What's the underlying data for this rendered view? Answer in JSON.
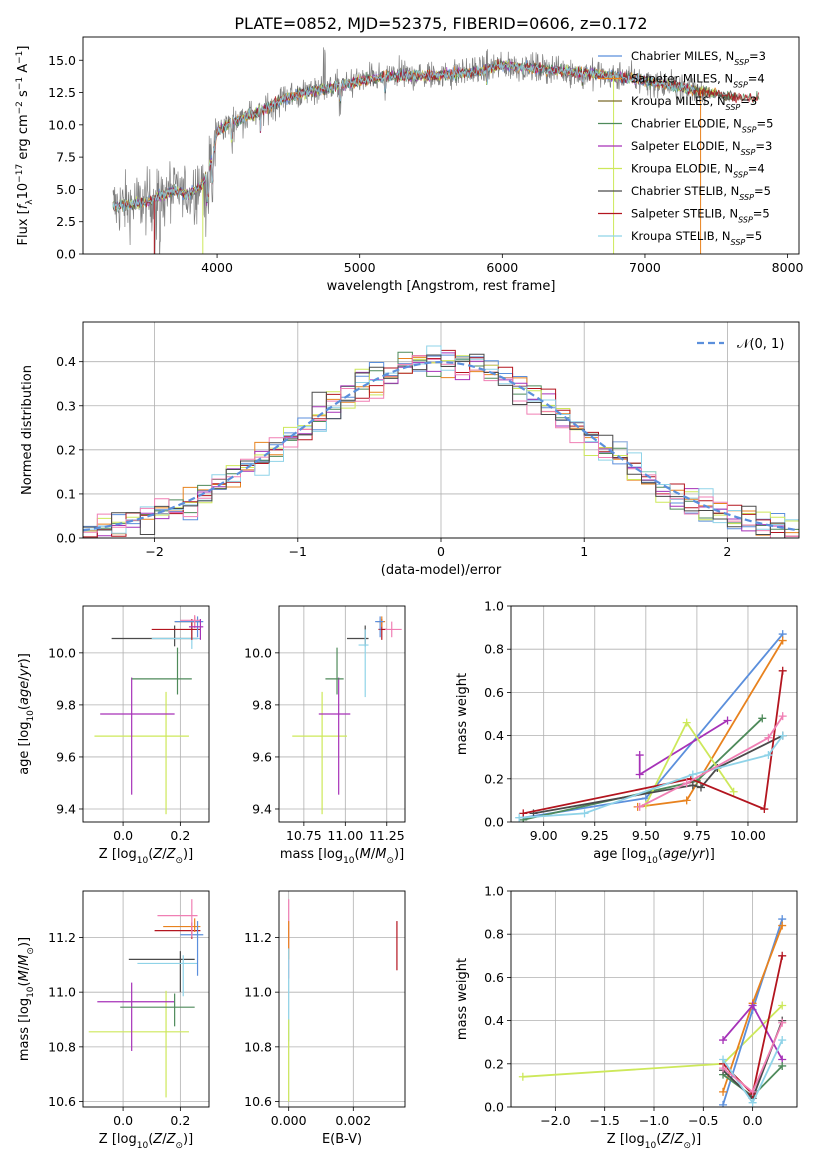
{
  "figure": {
    "title": "PLATE=0852, MJD=52375, FIBERID=0606, z=0.172"
  },
  "colors": {
    "chabrier_miles": "#5b8fdc",
    "salpeter_miles": "#e8821e",
    "kroupa_miles": "#7a6a2a",
    "chabrier_elodie": "#4e8a5a",
    "salpeter_elodie": "#a632b8",
    "kroupa_elodie": "#cde85a",
    "chabrier_stelib": "#4a4a4a",
    "salpeter_stelib": "#b3151f",
    "kroupa_stelib": "#8fd3e8",
    "data": "#7f7f7f",
    "normal": "#5b8fdc",
    "pink": "#f07fb4"
  },
  "chart_data": [
    {
      "id": "spectrum",
      "type": "line",
      "xlabel": "wavelength [Angstrom, rest frame]",
      "ylabel": "Flux [f_λ10^-17 erg cm^-2 s^-1 A^-1]",
      "xlim": [
        3060,
        8080
      ],
      "ylim": [
        0,
        16.8
      ],
      "xticks": [
        4000,
        5000,
        6000,
        7000,
        8000
      ],
      "yticks": [
        0.0,
        2.5,
        5.0,
        7.5,
        10.0,
        12.5,
        15.0
      ],
      "grid": false,
      "legend_position": "right",
      "anchors": {
        "x": [
          3270,
          3500,
          3600,
          3700,
          3800,
          3900,
          3970,
          4000,
          4100,
          4300,
          4500,
          4800,
          5000,
          5200,
          5500,
          5800,
          6000,
          6300,
          6600,
          6900,
          7200,
          7400,
          7600,
          7850
        ],
        "y": [
          3.7,
          4.0,
          4.5,
          4.9,
          4.6,
          5.4,
          7.5,
          9.5,
          10.2,
          11.0,
          12.2,
          12.9,
          13.4,
          13.8,
          13.8,
          14.1,
          14.6,
          14.3,
          14.0,
          13.6,
          13.0,
          12.6,
          12.2,
          12.0
        ]
      },
      "series": [
        {
          "name": "Chabrier MILES, N_SSP=3",
          "color_key": "chabrier_miles"
        },
        {
          "name": "Salpeter MILES, N_SSP=4",
          "color_key": "salpeter_miles"
        },
        {
          "name": "Kroupa MILES, N_SSP=3",
          "color_key": "kroupa_miles"
        },
        {
          "name": "Chabrier ELODIE, N_SSP=5",
          "color_key": "chabrier_elodie"
        },
        {
          "name": "Salpeter ELODIE, N_SSP=3",
          "color_key": "salpeter_elodie"
        },
        {
          "name": "Kroupa ELODIE, N_SSP=4",
          "color_key": "kroupa_elodie"
        },
        {
          "name": "Chabrier STELIB, N_SSP=5",
          "color_key": "chabrier_stelib"
        },
        {
          "name": "Salpeter STELIB, N_SSP=5",
          "color_key": "salpeter_stelib"
        },
        {
          "name": "Kroupa STELIB, N_SSP=5",
          "color_key": "kroupa_stelib"
        }
      ]
    },
    {
      "id": "residuals",
      "type": "line",
      "xlabel": "(data-model)/error",
      "ylabel": "Normed distribution",
      "xlim": [
        -2.5,
        2.5
      ],
      "ylim": [
        0,
        0.49
      ],
      "xticks": [
        -2,
        -1,
        0,
        1,
        2
      ],
      "yticks": [
        0.0,
        0.1,
        0.2,
        0.3,
        0.4
      ],
      "grid": true,
      "legend_position": "top-right",
      "legend_label": "𝒩(0, 1)",
      "bin_width": 0.1,
      "series_color_keys": [
        "chabrier_miles",
        "salpeter_miles",
        "chabrier_elodie",
        "salpeter_elodie",
        "kroupa_elodie",
        "salpeter_stelib",
        "kroupa_stelib",
        "pink",
        "chabrier_stelib"
      ]
    },
    {
      "id": "age_vs_Z",
      "type": "scatter",
      "xlabel": "Z [log10(Z/Z⊙)]",
      "ylabel": "age  [log10(age/yr)]",
      "xlim": [
        -0.14,
        0.3
      ],
      "ylim": [
        9.35,
        10.18
      ],
      "xticks": [
        0.0,
        0.2
      ],
      "yticks": [
        9.4,
        9.6,
        9.8,
        10.0
      ],
      "grid": true,
      "points": [
        {
          "x": 0.15,
          "y": 9.68,
          "xerr": [
            0.25,
            0.08
          ],
          "yerr": [
            0.3,
            0.17
          ],
          "color_key": "kroupa_elodie"
        },
        {
          "x": 0.03,
          "y": 9.765,
          "xerr": [
            0.11,
            0.15
          ],
          "yerr": [
            0.31,
            0.14
          ],
          "color_key": "salpeter_elodie"
        },
        {
          "x": 0.19,
          "y": 9.9,
          "xerr": [
            0.16,
            0.05
          ],
          "yerr": [
            0.06,
            0.12
          ],
          "color_key": "chabrier_elodie"
        },
        {
          "x": 0.18,
          "y": 10.055,
          "xerr": [
            0.22,
            0.08
          ],
          "yerr": [
            0.03,
            0.05
          ],
          "color_key": "chabrier_stelib"
        },
        {
          "x": 0.24,
          "y": 10.055,
          "xerr": [
            0.14,
            0.03
          ],
          "yerr": [
            0.04,
            0.06
          ],
          "color_key": "kroupa_stelib"
        },
        {
          "x": 0.24,
          "y": 10.09,
          "xerr": [
            0.14,
            0.03
          ],
          "yerr": [
            0.04,
            0.04
          ],
          "color_key": "salpeter_stelib"
        },
        {
          "x": 0.25,
          "y": 10.12,
          "xerr": [
            0.07,
            0.02
          ],
          "yerr": [
            0.02,
            0.02
          ],
          "color_key": "salpeter_miles"
        },
        {
          "x": 0.26,
          "y": 10.12,
          "xerr": [
            0.08,
            0.02
          ],
          "yerr": [
            0.06,
            0.02
          ],
          "color_key": "chabrier_miles"
        },
        {
          "x": 0.25,
          "y": 10.125,
          "xerr": [
            0.05,
            0.02
          ],
          "yerr": [
            0.03,
            0.02
          ],
          "color_key": "pink"
        },
        {
          "x": 0.27,
          "y": 10.1,
          "xerr": [
            0.04,
            0.01
          ],
          "yerr": [
            0.05,
            0.03
          ],
          "color_key": "salpeter_elodie"
        }
      ]
    },
    {
      "id": "age_vs_mass",
      "type": "scatter",
      "xlabel": "mass [log10(M/M⊙)]",
      "ylabel": "",
      "xlim": [
        10.6,
        11.36
      ],
      "ylim": [
        9.35,
        10.18
      ],
      "xticks": [
        10.75,
        11.0,
        11.25
      ],
      "yticks": [
        9.4,
        9.6,
        9.8,
        10.0
      ],
      "grid": true,
      "points": [
        {
          "x": 10.86,
          "y": 9.68,
          "xerr": [
            0.18,
            0.15
          ],
          "yerr": [
            0.3,
            0.17
          ],
          "color_key": "kroupa_elodie"
        },
        {
          "x": 10.96,
          "y": 9.765,
          "xerr": [
            0.12,
            0.07
          ],
          "yerr": [
            0.31,
            0.14
          ],
          "color_key": "salpeter_elodie"
        },
        {
          "x": 10.95,
          "y": 9.9,
          "xerr": [
            0.07,
            0.04
          ],
          "yerr": [
            0.06,
            0.12
          ],
          "color_key": "chabrier_elodie"
        },
        {
          "x": 11.12,
          "y": 10.055,
          "xerr": [
            0.11,
            0.02
          ],
          "yerr": [
            0.03,
            0.05
          ],
          "color_key": "chabrier_stelib"
        },
        {
          "x": 11.12,
          "y": 10.03,
          "xerr": [
            0.04,
            0.02
          ],
          "yerr": [
            0.2,
            0.06
          ],
          "color_key": "kroupa_stelib"
        },
        {
          "x": 11.22,
          "y": 10.09,
          "xerr": [
            0.02,
            0.03
          ],
          "yerr": [
            0.04,
            0.04
          ],
          "color_key": "salpeter_stelib"
        },
        {
          "x": 11.22,
          "y": 10.12,
          "xerr": [
            0.03,
            0.02
          ],
          "yerr": [
            0.02,
            0.02
          ],
          "color_key": "salpeter_miles"
        },
        {
          "x": 11.21,
          "y": 10.12,
          "xerr": [
            0.03,
            0.02
          ],
          "yerr": [
            0.06,
            0.02
          ],
          "color_key": "chabrier_miles"
        },
        {
          "x": 11.28,
          "y": 10.09,
          "xerr": [
            0.04,
            0.06
          ],
          "yerr": [
            0.03,
            0.03
          ],
          "color_key": "pink"
        }
      ]
    },
    {
      "id": "weight_vs_age",
      "type": "line",
      "xlabel": "age  [log10(age/yr)]",
      "ylabel": "mass weight",
      "xlim": [
        8.84,
        10.24
      ],
      "ylim": [
        0,
        1.0
      ],
      "xticks": [
        9.0,
        9.25,
        9.5,
        9.75,
        10.0
      ],
      "yticks": [
        0.0,
        0.2,
        0.4,
        0.6,
        0.8,
        1.0
      ],
      "grid": true,
      "series": [
        {
          "color_key": "chabrier_miles",
          "x": [
            8.9,
            9.5,
            10.17
          ],
          "y": [
            0.02,
            0.11,
            0.87
          ]
        },
        {
          "color_key": "salpeter_miles",
          "x": [
            9.46,
            9.7,
            10.17
          ],
          "y": [
            0.07,
            0.1,
            0.84
          ]
        },
        {
          "color_key": "chabrier_elodie",
          "x": [
            8.9,
            9.75,
            10.07
          ],
          "y": [
            0.01,
            0.19,
            0.48
          ]
        },
        {
          "color_key": "salpeter_elodie",
          "x": [
            9.47,
            9.47,
            9.9
          ],
          "y": [
            0.31,
            0.22,
            0.47
          ]
        },
        {
          "color_key": "kroupa_elodie",
          "x": [
            9.5,
            9.7,
            9.93
          ],
          "y": [
            0.08,
            0.46,
            0.14
          ]
        },
        {
          "color_key": "chabrier_stelib",
          "x": [
            8.95,
            9.73,
            9.77,
            9.85,
            10.17
          ],
          "y": [
            0.04,
            0.17,
            0.16,
            0.25,
            0.4
          ]
        },
        {
          "color_key": "salpeter_stelib",
          "x": [
            8.9,
            9.72,
            10.08,
            10.17
          ],
          "y": [
            0.04,
            0.2,
            0.06,
            0.7
          ]
        },
        {
          "color_key": "kroupa_stelib",
          "x": [
            8.88,
            9.2,
            9.73,
            10.1,
            10.17
          ],
          "y": [
            0.02,
            0.04,
            0.22,
            0.31,
            0.4
          ]
        },
        {
          "color_key": "pink",
          "x": [
            9.47,
            9.7,
            10.1,
            10.17
          ],
          "y": [
            0.07,
            0.18,
            0.39,
            0.49
          ]
        }
      ]
    },
    {
      "id": "mass_vs_Z",
      "type": "scatter",
      "xlabel": "Z [log10(Z/Z⊙)]",
      "ylabel": "mass [log10(M/M⊙)]",
      "xlim": [
        -0.14,
        0.3
      ],
      "ylim": [
        10.58,
        11.37
      ],
      "xticks": [
        0.0,
        0.2
      ],
      "yticks": [
        10.6,
        10.8,
        11.0,
        11.2
      ],
      "grid": true,
      "points": [
        {
          "x": 0.15,
          "y": 10.855,
          "xerr": [
            0.27,
            0.08
          ],
          "yerr": [
            0.24,
            0.15
          ],
          "color_key": "kroupa_elodie"
        },
        {
          "x": 0.03,
          "y": 10.965,
          "xerr": [
            0.12,
            0.15
          ],
          "yerr": [
            0.18,
            0.07
          ],
          "color_key": "salpeter_elodie"
        },
        {
          "x": 0.18,
          "y": 10.945,
          "xerr": [
            0.19,
            0.07
          ],
          "yerr": [
            0.07,
            0.05
          ],
          "color_key": "chabrier_elodie"
        },
        {
          "x": 0.2,
          "y": 11.12,
          "xerr": [
            0.18,
            0.05
          ],
          "yerr": [
            0.12,
            0.03
          ],
          "color_key": "chabrier_stelib"
        },
        {
          "x": 0.21,
          "y": 11.105,
          "xerr": [
            0.16,
            0.05
          ],
          "yerr": [
            0.12,
            0.03
          ],
          "color_key": "kroupa_stelib"
        },
        {
          "x": 0.24,
          "y": 11.225,
          "xerr": [
            0.13,
            0.03
          ],
          "yerr": [
            0.03,
            0.03
          ],
          "color_key": "salpeter_stelib"
        },
        {
          "x": 0.25,
          "y": 11.24,
          "xerr": [
            0.11,
            0.02
          ],
          "yerr": [
            0.02,
            0.03
          ],
          "color_key": "salpeter_miles"
        },
        {
          "x": 0.26,
          "y": 11.21,
          "xerr": [
            0.06,
            0.02
          ],
          "yerr": [
            0.15,
            0.05
          ],
          "color_key": "chabrier_miles"
        },
        {
          "x": 0.24,
          "y": 11.28,
          "xerr": [
            0.12,
            0.02
          ],
          "yerr": [
            0.08,
            0.06
          ],
          "color_key": "pink"
        }
      ]
    },
    {
      "id": "mass_vs_ebv",
      "type": "scatter",
      "xlabel": "E(B-V)",
      "ylabel": "",
      "xlim": [
        -0.0003,
        0.0036
      ],
      "ylim": [
        10.58,
        11.37
      ],
      "xticks": [
        0.0,
        0.002
      ],
      "yticks": [
        10.6,
        10.8,
        11.0,
        11.2
      ],
      "grid": true,
      "points": [
        {
          "x": 0.0,
          "y": 11.2,
          "yerr": [
            0.15,
            0.14
          ],
          "color_key": "pink"
        },
        {
          "x": 0.0,
          "y": 11.2,
          "yerr": [
            0.08,
            0.06
          ],
          "color_key": "salpeter_miles"
        },
        {
          "x": 0.0,
          "y": 11.0,
          "yerr": [
            0.18,
            0.16
          ],
          "color_key": "kroupa_stelib"
        },
        {
          "x": 0.0,
          "y": 10.8,
          "yerr": [
            0.2,
            0.1
          ],
          "color_key": "kroupa_elodie"
        },
        {
          "x": 0.00335,
          "y": 11.17,
          "yerr": [
            0.09,
            0.09
          ],
          "color_key": "salpeter_stelib"
        }
      ]
    },
    {
      "id": "weight_vs_Z",
      "type": "line",
      "xlabel": "Z [log10(Z/Z⊙)]",
      "ylabel": "mass weight",
      "xlim": [
        -2.45,
        0.45
      ],
      "ylim": [
        0,
        1.0
      ],
      "xticks": [
        -2.0,
        -1.5,
        -1.0,
        -0.5,
        0.0
      ],
      "yticks": [
        0.0,
        0.2,
        0.4,
        0.6,
        0.8,
        1.0
      ],
      "grid": true,
      "series": [
        {
          "color_key": "kroupa_elodie",
          "x": [
            -2.33,
            -0.3,
            0.3
          ],
          "y": [
            0.14,
            0.2,
            0.47
          ]
        },
        {
          "color_key": "chabrier_miles",
          "x": [
            -0.3,
            0.0,
            0.3
          ],
          "y": [
            0.01,
            0.45,
            0.87
          ]
        },
        {
          "color_key": "salpeter_miles",
          "x": [
            -0.3,
            0.0,
            0.3
          ],
          "y": [
            0.07,
            0.48,
            0.84
          ]
        },
        {
          "color_key": "salpeter_elodie",
          "x": [
            -0.3,
            0.0,
            0.3
          ],
          "y": [
            0.31,
            0.47,
            0.22
          ]
        },
        {
          "color_key": "chabrier_elodie",
          "x": [
            -0.3,
            0.0,
            0.3
          ],
          "y": [
            0.15,
            0.05,
            0.19
          ]
        },
        {
          "color_key": "chabrier_stelib",
          "x": [
            -0.3,
            0.0,
            0.3
          ],
          "y": [
            0.17,
            0.04,
            0.4
          ]
        },
        {
          "color_key": "salpeter_stelib",
          "x": [
            -0.3,
            0.0,
            0.3
          ],
          "y": [
            0.2,
            0.06,
            0.7
          ]
        },
        {
          "color_key": "kroupa_stelib",
          "x": [
            -0.3,
            0.0,
            0.3
          ],
          "y": [
            0.22,
            0.02,
            0.31
          ]
        },
        {
          "color_key": "pink",
          "x": [
            -0.3,
            0.0,
            0.3
          ],
          "y": [
            0.18,
            0.07,
            0.39
          ]
        }
      ]
    }
  ]
}
